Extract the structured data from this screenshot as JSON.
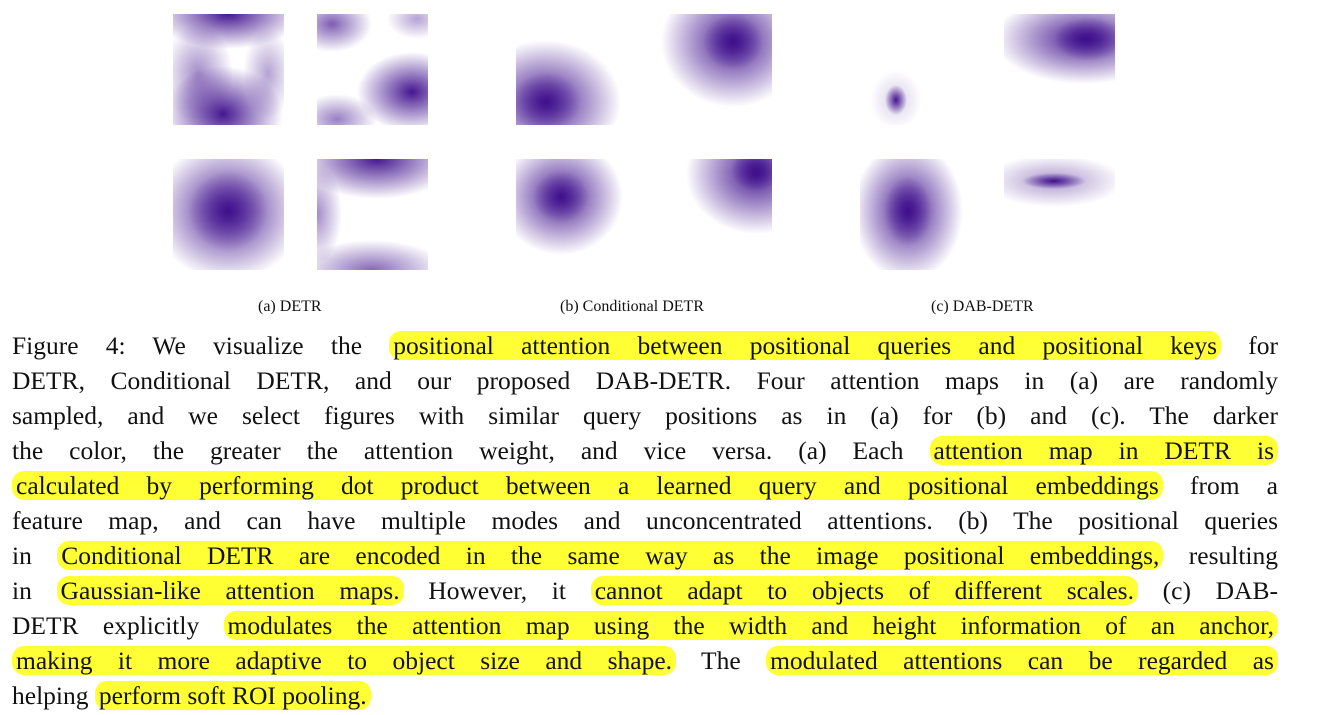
{
  "palette": {
    "attention_color": "#3b0a8a",
    "highlight_color": "#ffff33"
  },
  "figure": {
    "panels": [
      {
        "label": "(a) DETR"
      },
      {
        "label": "(b) Conditional DETR"
      },
      {
        "label": "(c) DAB-DETR"
      }
    ],
    "caption": {
      "lines": [
        [
          {
            "t": "Figure 4: We visualize the ",
            "hl": false
          },
          {
            "t": "positional attention between positional queries and positional keys",
            "hl": true
          },
          {
            "t": " for",
            "hl": false
          }
        ],
        [
          {
            "t": "DETR, Conditional DETR, and our proposed DAB-DETR. Four attention maps in (a) are randomly",
            "hl": false
          }
        ],
        [
          {
            "t": "sampled, and we select figures with similar query positions as in (a) for (b) and (c). The darker",
            "hl": false
          }
        ],
        [
          {
            "t": "the color, the greater the attention weight, and vice versa. (a) Each ",
            "hl": false
          },
          {
            "t": "attention map in DETR is",
            "hl": true
          }
        ],
        [
          {
            "t": "calculated by performing dot product between a learned query and positional embeddings",
            "hl": true
          },
          {
            "t": " from a",
            "hl": false
          }
        ],
        [
          {
            "t": "feature map, and can have multiple modes and unconcentrated attentions. (b) The positional queries",
            "hl": false
          }
        ],
        [
          {
            "t": "in ",
            "hl": false
          },
          {
            "t": "Conditional DETR are encoded in the same way as the image positional embeddings,",
            "hl": true
          },
          {
            "t": " resulting",
            "hl": false
          }
        ],
        [
          {
            "t": "in ",
            "hl": false
          },
          {
            "t": "Gaussian-like attention maps.",
            "hl": true
          },
          {
            "t": " However, it ",
            "hl": false
          },
          {
            "t": "cannot adapt to objects of different scales.",
            "hl": true
          },
          {
            "t": " (c) DAB-",
            "hl": false
          }
        ],
        [
          {
            "t": "DETR explicitly ",
            "hl": false
          },
          {
            "t": "modulates the attention map using the width and height information of an anchor,",
            "hl": true
          }
        ],
        [
          {
            "t": "making it more adaptive to object size and shape.",
            "hl": true
          },
          {
            "t": " The ",
            "hl": false
          },
          {
            "t": "modulated attentions can be regarded as",
            "hl": true
          }
        ],
        [
          {
            "t": "helping ",
            "hl": false
          },
          {
            "t": "perform soft ROI pooling.",
            "hl": true
          }
        ]
      ]
    }
  }
}
